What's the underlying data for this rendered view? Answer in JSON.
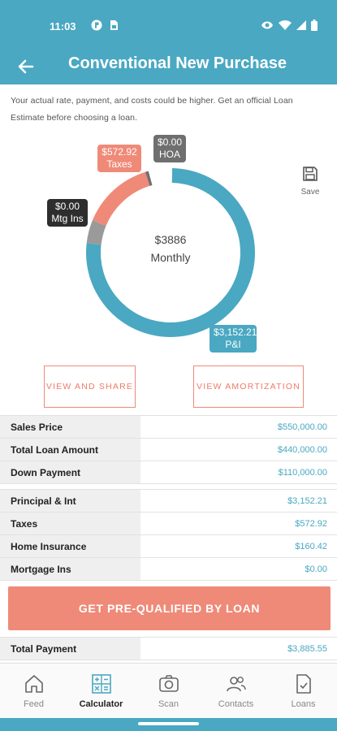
{
  "status_bar": {
    "time": "11:03"
  },
  "app_bar": {
    "title": "Conventional New Purchase"
  },
  "disclaimer": "Your actual rate, payment, and costs could be higher. Get an official Loan Estimate before choosing a loan.",
  "chart_data": {
    "type": "pie",
    "style": "donut",
    "center_amount": "$3886",
    "center_label": "Monthly",
    "slices": [
      {
        "name": "P&I",
        "value_label": "$3,152.21",
        "value": 3152.21,
        "color": "#4aa8c2"
      },
      {
        "name": "Taxes",
        "value_label": "$572.92",
        "value": 572.92,
        "color": "#ef8a78"
      },
      {
        "name": "HOA",
        "value_label": "$0.00",
        "value": 0.0,
        "color": "#6f6f6f"
      },
      {
        "name": "Mtg Ins",
        "value_label": "$0.00",
        "value": 0.0,
        "color": "#9a9a9a"
      }
    ]
  },
  "save": {
    "label": "Save",
    "icon": "save-icon"
  },
  "buttons": {
    "view_share": "VIEW AND SHARE",
    "view_amortization": "VIEW AMORTIZATION",
    "prequalify": "GET PRE-QUALIFIED BY LOAN"
  },
  "loan_table": [
    {
      "label": "Sales Price",
      "value": "$550,000.00"
    },
    {
      "label": "Total Loan Amount",
      "value": "$440,000.00"
    },
    {
      "label": "Down Payment",
      "value": "$110,000.00"
    }
  ],
  "payment_table": [
    {
      "label": "Principal & Int",
      "value": "$3,152.21"
    },
    {
      "label": "Taxes",
      "value": "$572.92"
    },
    {
      "label": "Home Insurance",
      "value": "$160.42"
    },
    {
      "label": "Mortgage Ins",
      "value": "$0.00"
    }
  ],
  "total": {
    "label": "Total Payment",
    "value": "$3,885.55"
  },
  "nav": [
    {
      "label": "Feed",
      "icon": "home-icon",
      "active": false
    },
    {
      "label": "Calculator",
      "icon": "calculator-icon",
      "active": true
    },
    {
      "label": "Scan",
      "icon": "camera-icon",
      "active": false
    },
    {
      "label": "Contacts",
      "icon": "contacts-icon",
      "active": false
    },
    {
      "label": "Loans",
      "icon": "document-check-icon",
      "active": false
    }
  ]
}
